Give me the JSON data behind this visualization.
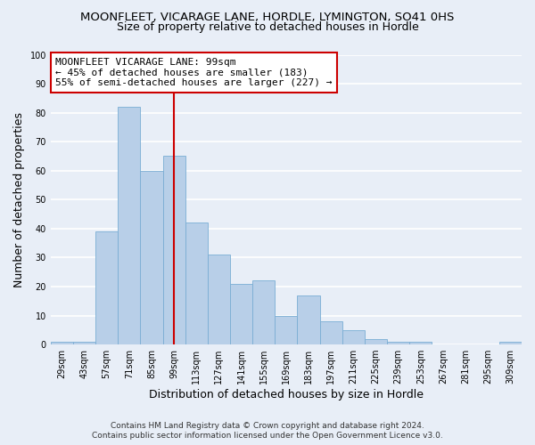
{
  "title": "MOONFLEET, VICARAGE LANE, HORDLE, LYMINGTON, SO41 0HS",
  "subtitle": "Size of property relative to detached houses in Hordle",
  "xlabel": "Distribution of detached houses by size in Hordle",
  "ylabel": "Number of detached properties",
  "bar_labels": [
    "29sqm",
    "43sqm",
    "57sqm",
    "71sqm",
    "85sqm",
    "99sqm",
    "113sqm",
    "127sqm",
    "141sqm",
    "155sqm",
    "169sqm",
    "183sqm",
    "197sqm",
    "211sqm",
    "225sqm",
    "239sqm",
    "253sqm",
    "267sqm",
    "281sqm",
    "295sqm",
    "309sqm"
  ],
  "bar_values": [
    1,
    1,
    39,
    82,
    60,
    65,
    42,
    31,
    21,
    22,
    10,
    17,
    8,
    5,
    2,
    1,
    1,
    0,
    0,
    0,
    1
  ],
  "bar_color": "#b8cfe8",
  "bar_edge_color": "#7aadd4",
  "vline_x": 5,
  "vline_color": "#cc0000",
  "annotation_title": "MOONFLEET VICARAGE LANE: 99sqm",
  "annotation_line1": "← 45% of detached houses are smaller (183)",
  "annotation_line2": "55% of semi-detached houses are larger (227) →",
  "annotation_box_facecolor": "#ffffff",
  "annotation_box_edgecolor": "#cc0000",
  "ylim": [
    0,
    100
  ],
  "yticks": [
    0,
    10,
    20,
    30,
    40,
    50,
    60,
    70,
    80,
    90,
    100
  ],
  "footer_line1": "Contains HM Land Registry data © Crown copyright and database right 2024.",
  "footer_line2": "Contains public sector information licensed under the Open Government Licence v3.0.",
  "background_color": "#e8eef7",
  "plot_bg_color": "#e8eef7",
  "grid_color": "#ffffff",
  "title_fontsize": 9.5,
  "subtitle_fontsize": 9,
  "axis_label_fontsize": 9,
  "annotation_fontsize": 8,
  "tick_fontsize": 7,
  "footer_fontsize": 6.5
}
